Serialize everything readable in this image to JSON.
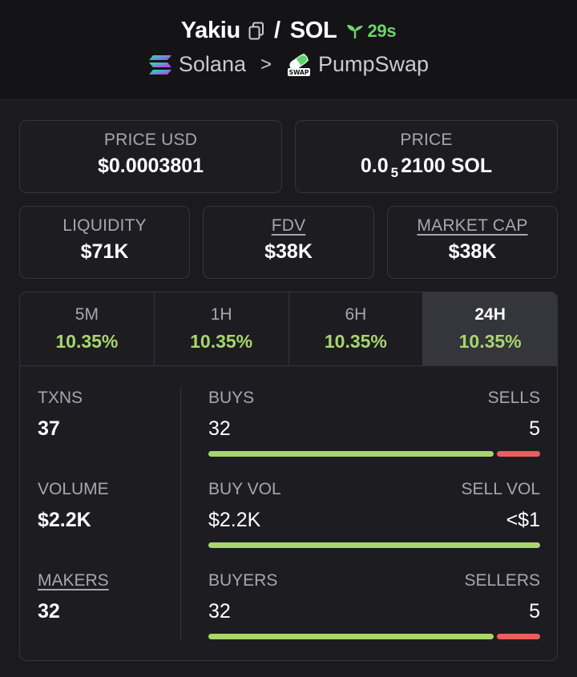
{
  "header": {
    "token": "Yakiu",
    "slash": "/",
    "quote": "SOL",
    "age": "29s",
    "chain": "Solana",
    "chevron": ">",
    "dex": "PumpSwap",
    "swap_badge": "SWAP"
  },
  "price_usd": {
    "label": "PRICE USD",
    "value": "$0.0003801"
  },
  "price": {
    "label": "PRICE",
    "value_prefix": "0.0",
    "value_sub": "5",
    "value_suffix": "2100 SOL"
  },
  "liquidity": {
    "label": "LIQUIDITY",
    "value": "$71K"
  },
  "fdv": {
    "label": "FDV",
    "value": "$38K"
  },
  "market_cap": {
    "label": "MARKET CAP",
    "value": "$38K"
  },
  "tabs": [
    {
      "label": "5M",
      "value": "10.35%"
    },
    {
      "label": "1H",
      "value": "10.35%"
    },
    {
      "label": "6H",
      "value": "10.35%"
    },
    {
      "label": "24H",
      "value": "10.35%"
    }
  ],
  "stats": {
    "txns": {
      "label": "TXNS",
      "value": "37"
    },
    "volume": {
      "label": "VOLUME",
      "value": "$2.2K"
    },
    "makers": {
      "label": "MAKERS",
      "value": "32"
    }
  },
  "buys_sells": {
    "left_label": "BUYS",
    "right_label": "SELLS",
    "left_value": "32",
    "right_value": "5",
    "buy_fraction": 0.865
  },
  "vol": {
    "left_label": "BUY VOL",
    "right_label": "SELL VOL",
    "left_value": "$2.2K",
    "right_value": "<$1",
    "buy_fraction": 1.0
  },
  "buyers_sellers": {
    "left_label": "BUYERS",
    "right_label": "SELLERS",
    "left_value": "32",
    "right_value": "5",
    "buy_fraction": 0.865
  },
  "colors": {
    "green": "#a8d66c",
    "red": "#ec5d5d",
    "age_green": "#6cd46a"
  }
}
